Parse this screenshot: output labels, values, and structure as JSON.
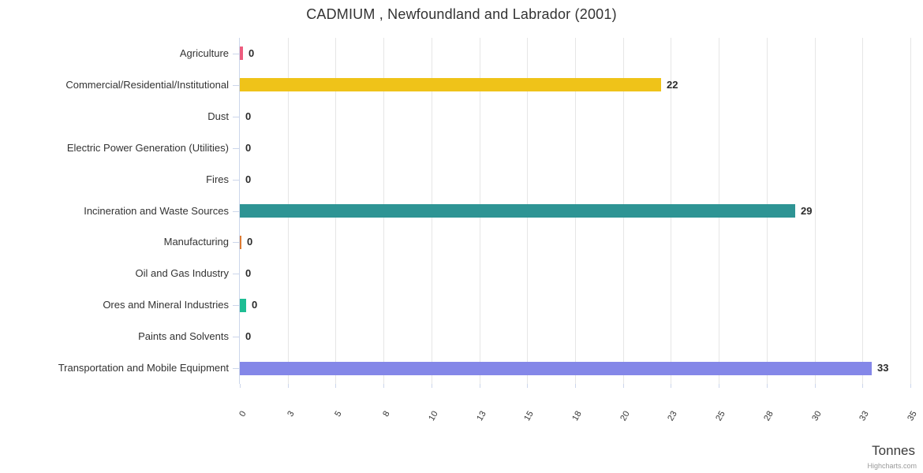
{
  "credits": "Highcharts.com",
  "chart_data": {
    "type": "bar",
    "orientation": "horizontal",
    "title": "CADMIUM , Newfoundland and Labrador (2001)",
    "categories": [
      "Agriculture",
      "Commercial/Residential/Institutional",
      "Dust",
      "Electric Power Generation (Utilities)",
      "Fires",
      "Incineration and Waste Sources",
      "Manufacturing",
      "Oil and Gas Industry",
      "Ores and Mineral Industries",
      "Paints and Solvents",
      "Transportation and Mobile Equipment"
    ],
    "values": [
      0.16,
      22,
      0,
      0,
      0,
      29,
      0.08,
      0,
      0.33,
      0,
      33
    ],
    "value_labels": [
      "0",
      "22",
      "0",
      "0",
      "0",
      "29",
      "0",
      "0",
      "0",
      "0",
      "33"
    ],
    "bar_colors": [
      "#ed5c7e",
      "#efc319",
      "#bbbbbb",
      "#bbbbbb",
      "#bbbbbb",
      "#2e9494",
      "#dd7b33",
      "#bbbbbb",
      "#1ebd93",
      "#bbbbbb",
      "#8487e8"
    ],
    "xticks": {
      "values": [
        0,
        2.5,
        5,
        7.5,
        10,
        12.5,
        15,
        17.5,
        20,
        22.5,
        25,
        27.5,
        30,
        32.5,
        35
      ],
      "labels": [
        "0",
        "3",
        "5",
        "8",
        "10",
        "13",
        "15",
        "18",
        "20",
        "23",
        "25",
        "28",
        "30",
        "33",
        "35"
      ]
    },
    "xlim": [
      0,
      35
    ],
    "ylabel": "Tonnes",
    "grid": true,
    "legend": false,
    "colors": {
      "gridline": "#e6e6e6",
      "axis": "#ccd6eb",
      "text": "#333333"
    }
  }
}
